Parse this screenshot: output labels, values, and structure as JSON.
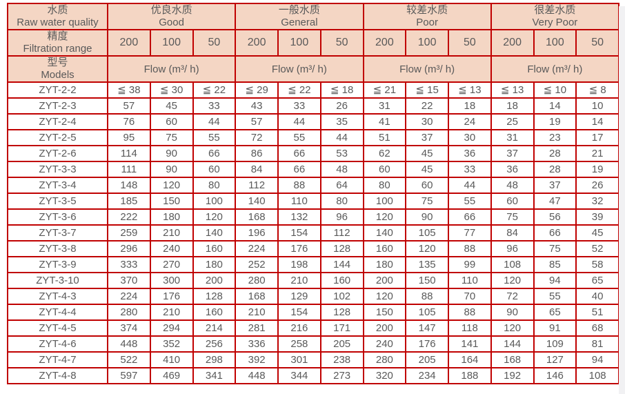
{
  "colors": {
    "border": "#c00000",
    "header_bg": "#f4d6c4",
    "text": "#595959",
    "page_bg": "#ffffff",
    "edge_strip": "#f1f1f3"
  },
  "table": {
    "corner": [
      {
        "zh": "水质",
        "en": "Raw water quality"
      },
      {
        "zh": "精度",
        "en": "Filtration range"
      },
      {
        "zh": "型号",
        "en": "Models"
      }
    ],
    "quality_groups": [
      {
        "zh": "优良水质",
        "en": "Good"
      },
      {
        "zh": "一般水质",
        "en": "General"
      },
      {
        "zh": "较差水质",
        "en": "Poor"
      },
      {
        "zh": "很差水质",
        "en": "Very Poor"
      }
    ],
    "filtration_values": [
      "200",
      "100",
      "50"
    ],
    "flow_label": "Flow (m³/ h)",
    "rows": [
      {
        "model": "ZYT-2-2",
        "values": [
          "≦ 38",
          "≦ 30",
          "≦ 22",
          "≦ 29",
          "≦ 22",
          "≦ 18",
          "≦ 21",
          "≦ 15",
          "≦ 13",
          "≦ 13",
          "≦ 10",
          "≦ 8"
        ]
      },
      {
        "model": "ZYT-2-3",
        "values": [
          "57",
          "45",
          "33",
          "43",
          "33",
          "26",
          "31",
          "22",
          "18",
          "18",
          "14",
          "10"
        ]
      },
      {
        "model": "ZYT-2-4",
        "values": [
          "76",
          "60",
          "44",
          "57",
          "44",
          "35",
          "41",
          "30",
          "24",
          "25",
          "19",
          "14"
        ]
      },
      {
        "model": "ZYT-2-5",
        "values": [
          "95",
          "75",
          "55",
          "72",
          "55",
          "44",
          "51",
          "37",
          "30",
          "31",
          "23",
          "17"
        ]
      },
      {
        "model": "ZYT-2-6",
        "values": [
          "114",
          "90",
          "66",
          "86",
          "66",
          "53",
          "62",
          "45",
          "36",
          "37",
          "28",
          "21"
        ]
      },
      {
        "model": "ZYT-3-3",
        "values": [
          "111",
          "90",
          "60",
          "84",
          "66",
          "48",
          "60",
          "45",
          "33",
          "36",
          "28",
          "19"
        ]
      },
      {
        "model": "ZYT-3-4",
        "values": [
          "148",
          "120",
          "80",
          "112",
          "88",
          "64",
          "80",
          "60",
          "44",
          "48",
          "37",
          "26"
        ]
      },
      {
        "model": "ZYT-3-5",
        "values": [
          "185",
          "150",
          "100",
          "140",
          "110",
          "80",
          "100",
          "75",
          "55",
          "60",
          "47",
          "32"
        ]
      },
      {
        "model": "ZYT-3-6",
        "values": [
          "222",
          "180",
          "120",
          "168",
          "132",
          "96",
          "120",
          "90",
          "66",
          "75",
          "56",
          "39"
        ]
      },
      {
        "model": "ZYT-3-7",
        "values": [
          "259",
          "210",
          "140",
          "196",
          "154",
          "112",
          "140",
          "105",
          "77",
          "84",
          "66",
          "45"
        ]
      },
      {
        "model": "ZYT-3-8",
        "values": [
          "296",
          "240",
          "160",
          "224",
          "176",
          "128",
          "160",
          "120",
          "88",
          "96",
          "75",
          "52"
        ]
      },
      {
        "model": "ZYT-3-9",
        "values": [
          "333",
          "270",
          "180",
          "252",
          "198",
          "144",
          "180",
          "135",
          "99",
          "108",
          "85",
          "58"
        ]
      },
      {
        "model": "ZYT-3-10",
        "values": [
          "370",
          "300",
          "200",
          "280",
          "210",
          "160",
          "200",
          "150",
          "110",
          "120",
          "94",
          "65"
        ]
      },
      {
        "model": "ZYT-4-3",
        "values": [
          "224",
          "176",
          "128",
          "168",
          "129",
          "102",
          "120",
          "88",
          "70",
          "72",
          "55",
          "40"
        ]
      },
      {
        "model": "ZYT-4-4",
        "values": [
          "280",
          "210",
          "160",
          "210",
          "154",
          "128",
          "150",
          "105",
          "88",
          "90",
          "65",
          "51"
        ]
      },
      {
        "model": "ZYT-4-5",
        "values": [
          "374",
          "294",
          "214",
          "281",
          "216",
          "171",
          "200",
          "147",
          "118",
          "120",
          "91",
          "68"
        ]
      },
      {
        "model": "ZYT-4-6",
        "values": [
          "448",
          "352",
          "256",
          "336",
          "258",
          "205",
          "240",
          "176",
          "141",
          "144",
          "109",
          "81"
        ]
      },
      {
        "model": "ZYT-4-7",
        "values": [
          "522",
          "410",
          "298",
          "392",
          "301",
          "238",
          "280",
          "205",
          "164",
          "168",
          "127",
          "94"
        ]
      },
      {
        "model": "ZYT-4-8",
        "values": [
          "597",
          "469",
          "341",
          "448",
          "344",
          "273",
          "320",
          "234",
          "188",
          "192",
          "146",
          "108"
        ]
      }
    ]
  }
}
